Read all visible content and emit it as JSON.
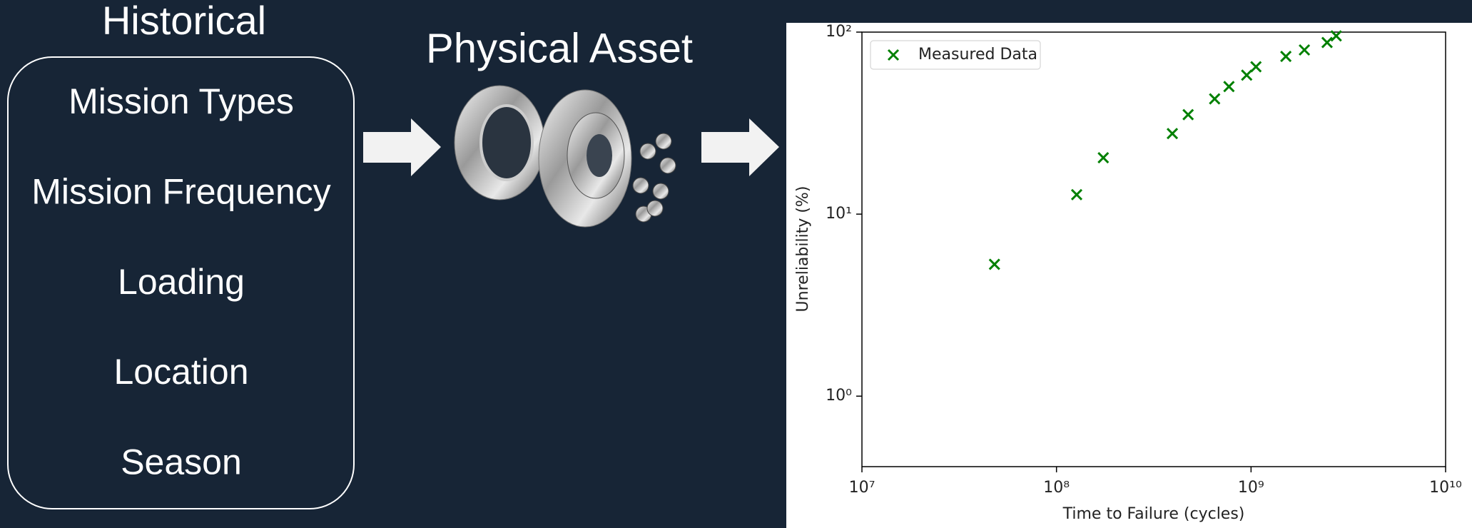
{
  "header": {
    "title": "Historical"
  },
  "list": {
    "items": [
      "Mission Types",
      "Mission Frequency",
      "Loading",
      "Location",
      "Season"
    ]
  },
  "asset": {
    "label": "Physical Asset"
  },
  "chart_data": {
    "type": "scatter",
    "xlabel": "Time to Failure (cycles)",
    "ylabel": "Unreliability (%)",
    "x": [
      48000000,
      127000000,
      174000000,
      394000000,
      475000000,
      650000000,
      770000000,
      950000000,
      1060000000,
      1510000000,
      1880000000,
      2460000000,
      2740000000
    ],
    "series": [
      {
        "name": "Measured Data",
        "color": "#008000",
        "marker": "x",
        "values": [
          5.3,
          12.8,
          20.4,
          27.7,
          35.2,
          43.0,
          50.2,
          58,
          64.5,
          73.5,
          79.8,
          87.7,
          95.3
        ]
      }
    ],
    "xlim": [
      10000000,
      10000000000
    ],
    "ylim": [
      0.41,
      100
    ],
    "xticks": [
      {
        "value": 10000000,
        "label": "10⁷"
      },
      {
        "value": 100000000,
        "label": "10⁸"
      },
      {
        "value": 1000000000,
        "label": "10⁹"
      },
      {
        "value": 10000000000,
        "label": "10¹⁰"
      }
    ],
    "yticks": [
      {
        "value": 1,
        "label": "10⁰"
      },
      {
        "value": 10,
        "label": "10¹"
      },
      {
        "value": 100,
        "label": "10²"
      }
    ],
    "xscale": "log",
    "yscale": "log",
    "legend": "upper left"
  }
}
